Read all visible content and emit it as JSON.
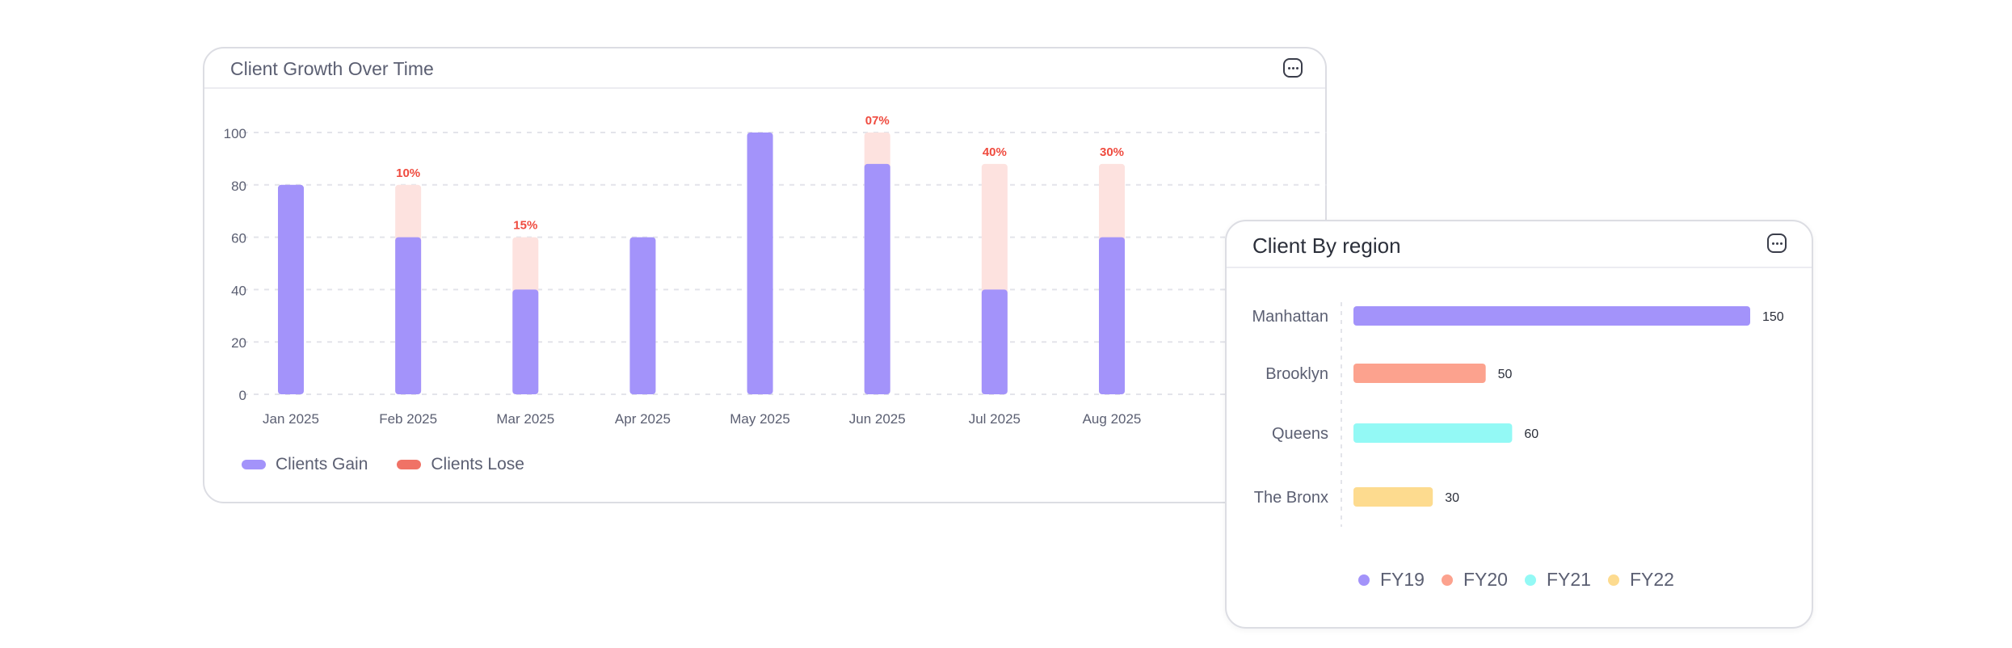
{
  "growth_chart": {
    "title": "Client Growth Over Time",
    "menu_icon": "more-horizontal-icon",
    "legend": [
      {
        "label": "Clients Gain",
        "color": "#a393fa"
      },
      {
        "label": "Clients Lose",
        "color": "#f07266"
      }
    ]
  },
  "region_chart": {
    "title": "Client By region",
    "menu_icon": "more-horizontal-icon",
    "legend": [
      {
        "label": "FY19",
        "color": "#a393fa"
      },
      {
        "label": "FY20",
        "color": "#fca28e"
      },
      {
        "label": "FY21",
        "color": "#93f9f5"
      },
      {
        "label": "FY22",
        "color": "#fddb8f"
      }
    ]
  },
  "chart_data": [
    {
      "type": "bar",
      "stacked": true,
      "title": "Client Growth Over Time",
      "categories": [
        "Jan 2025",
        "Feb 2025",
        "Mar 2025",
        "Apr 2025",
        "May 2025",
        "Jun 2025",
        "Jul 2025",
        "Aug 2025"
      ],
      "series": [
        {
          "name": "Clients Gain",
          "color": "#a393fa",
          "values": [
            80,
            60,
            40,
            60,
            100,
            88,
            40,
            60
          ]
        },
        {
          "name": "Clients Lose",
          "color": "#fde2df",
          "values": [
            0,
            20,
            20,
            0,
            0,
            12,
            48,
            28
          ]
        }
      ],
      "data_labels": [
        "",
        "10%",
        "15%",
        "",
        "",
        "07%",
        "40%",
        "30%"
      ],
      "data_label_color": "#ef4b3f",
      "yticks": [
        0,
        20,
        40,
        60,
        80,
        100
      ],
      "ylim": [
        0,
        100
      ],
      "grid": true,
      "legend_position": "bottom-left"
    },
    {
      "type": "bar",
      "orientation": "horizontal",
      "title": "Client By region",
      "categories": [
        "Manhattan",
        "Brooklyn",
        "Queens",
        "The Bronx"
      ],
      "values": [
        150,
        50,
        60,
        30
      ],
      "value_labels": [
        "150",
        "50",
        "60",
        "30"
      ],
      "colors": [
        "#a393fa",
        "#fca28e",
        "#93f9f5",
        "#fddb8f"
      ],
      "legend": [
        "FY19",
        "FY20",
        "FY21",
        "FY22"
      ],
      "legend_position": "bottom"
    }
  ]
}
